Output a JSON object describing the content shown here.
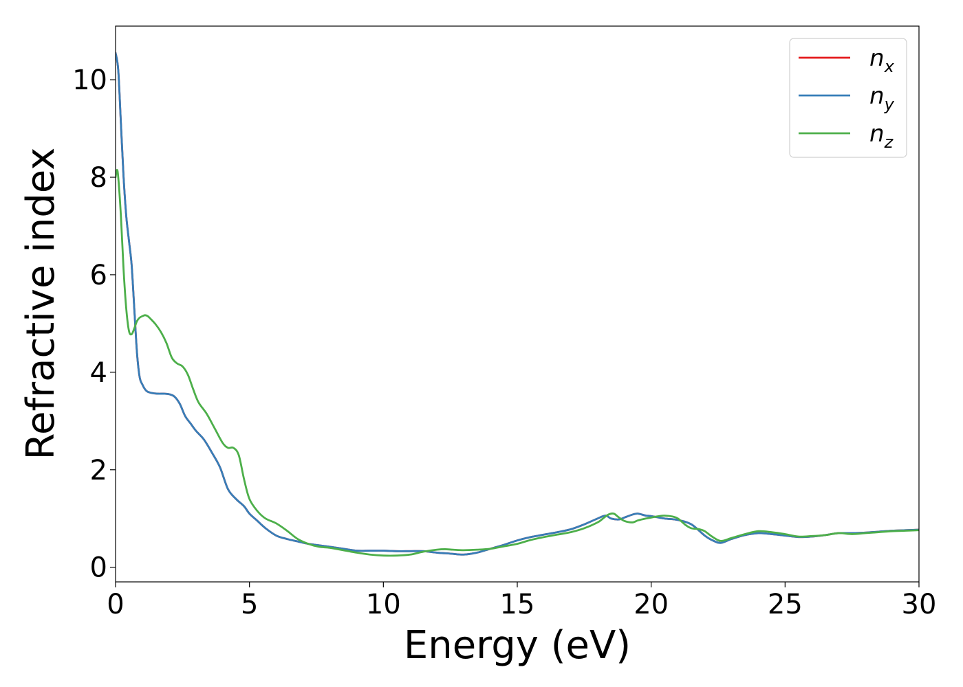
{
  "chart_data": {
    "type": "line",
    "title": "",
    "xlabel": "Energy (eV)",
    "ylabel": "Refractive index",
    "xlim": [
      0,
      30
    ],
    "ylim": [
      -0.3,
      11.1
    ],
    "xticks": [
      0,
      5,
      10,
      15,
      20,
      25,
      30
    ],
    "yticks": [
      0,
      2,
      4,
      6,
      8,
      10
    ],
    "grid": false,
    "legend_position": "top-right",
    "series": [
      {
        "name": "n",
        "subscript": "x",
        "color": "#e41a1c",
        "x": [
          0,
          0.1,
          0.2,
          0.3,
          0.4,
          0.5,
          0.6,
          0.7,
          0.8,
          0.9,
          1.0,
          1.1,
          1.2,
          1.4,
          1.6,
          1.8,
          2.0,
          2.2,
          2.4,
          2.6,
          2.8,
          3.0,
          3.3,
          3.6,
          3.9,
          4.2,
          4.5,
          4.8,
          5.0,
          5.3,
          5.6,
          6.0,
          6.4,
          6.8,
          7.2,
          7.6,
          8.0,
          8.5,
          9.0,
          9.5,
          10.0,
          10.5,
          11.0,
          11.5,
          12.0,
          12.5,
          13.0,
          13.5,
          14.0,
          14.5,
          15.0,
          15.5,
          16.0,
          16.5,
          17.0,
          17.5,
          18.0,
          18.3,
          18.5,
          18.8,
          19.0,
          19.3,
          19.5,
          19.8,
          20.0,
          20.5,
          21.0,
          21.5,
          22.0,
          22.3,
          22.6,
          23.0,
          23.5,
          24.0,
          24.5,
          25.0,
          25.5,
          26.0,
          26.5,
          27.0,
          27.5,
          28.0,
          28.5,
          29.0,
          29.5,
          30.0
        ],
        "values": [
          10.55,
          10.2,
          9.1,
          8.0,
          7.2,
          6.7,
          6.2,
          5.3,
          4.4,
          3.9,
          3.75,
          3.65,
          3.6,
          3.57,
          3.56,
          3.56,
          3.55,
          3.5,
          3.35,
          3.1,
          2.95,
          2.8,
          2.62,
          2.35,
          2.05,
          1.6,
          1.4,
          1.25,
          1.1,
          0.95,
          0.8,
          0.65,
          0.58,
          0.53,
          0.48,
          0.45,
          0.42,
          0.38,
          0.34,
          0.34,
          0.34,
          0.33,
          0.33,
          0.33,
          0.3,
          0.28,
          0.26,
          0.3,
          0.38,
          0.46,
          0.55,
          0.62,
          0.67,
          0.72,
          0.78,
          0.88,
          1.0,
          1.06,
          1.0,
          0.98,
          1.02,
          1.08,
          1.1,
          1.06,
          1.05,
          1.0,
          0.97,
          0.88,
          0.65,
          0.55,
          0.5,
          0.58,
          0.66,
          0.7,
          0.68,
          0.65,
          0.62,
          0.63,
          0.66,
          0.7,
          0.7,
          0.71,
          0.73,
          0.75,
          0.76,
          0.77
        ]
      },
      {
        "name": "n",
        "subscript": "y",
        "color": "#377eb8",
        "x": [
          0,
          0.1,
          0.2,
          0.3,
          0.4,
          0.5,
          0.6,
          0.7,
          0.8,
          0.9,
          1.0,
          1.1,
          1.2,
          1.4,
          1.6,
          1.8,
          2.0,
          2.2,
          2.4,
          2.6,
          2.8,
          3.0,
          3.3,
          3.6,
          3.9,
          4.2,
          4.5,
          4.8,
          5.0,
          5.3,
          5.6,
          6.0,
          6.4,
          6.8,
          7.2,
          7.6,
          8.0,
          8.5,
          9.0,
          9.5,
          10.0,
          10.5,
          11.0,
          11.5,
          12.0,
          12.5,
          13.0,
          13.5,
          14.0,
          14.5,
          15.0,
          15.5,
          16.0,
          16.5,
          17.0,
          17.5,
          18.0,
          18.3,
          18.5,
          18.8,
          19.0,
          19.3,
          19.5,
          19.8,
          20.0,
          20.5,
          21.0,
          21.5,
          22.0,
          22.3,
          22.6,
          23.0,
          23.5,
          24.0,
          24.5,
          25.0,
          25.5,
          26.0,
          26.5,
          27.0,
          27.5,
          28.0,
          28.5,
          29.0,
          29.5,
          30.0
        ],
        "values": [
          10.55,
          10.2,
          9.1,
          8.0,
          7.2,
          6.7,
          6.2,
          5.3,
          4.4,
          3.9,
          3.75,
          3.65,
          3.6,
          3.57,
          3.56,
          3.56,
          3.55,
          3.5,
          3.35,
          3.1,
          2.95,
          2.8,
          2.62,
          2.35,
          2.05,
          1.6,
          1.4,
          1.25,
          1.1,
          0.95,
          0.8,
          0.65,
          0.58,
          0.53,
          0.48,
          0.45,
          0.42,
          0.38,
          0.34,
          0.34,
          0.34,
          0.33,
          0.33,
          0.33,
          0.3,
          0.28,
          0.26,
          0.3,
          0.38,
          0.46,
          0.55,
          0.62,
          0.67,
          0.72,
          0.78,
          0.88,
          1.0,
          1.06,
          1.0,
          0.98,
          1.02,
          1.08,
          1.1,
          1.06,
          1.05,
          1.0,
          0.97,
          0.88,
          0.65,
          0.55,
          0.5,
          0.58,
          0.66,
          0.7,
          0.68,
          0.65,
          0.62,
          0.63,
          0.66,
          0.7,
          0.7,
          0.71,
          0.73,
          0.75,
          0.76,
          0.77
        ]
      },
      {
        "name": "n",
        "subscript": "z",
        "color": "#4daf4a",
        "x": [
          0,
          0.05,
          0.1,
          0.2,
          0.3,
          0.4,
          0.5,
          0.6,
          0.7,
          0.8,
          0.9,
          1.0,
          1.1,
          1.2,
          1.3,
          1.5,
          1.7,
          1.9,
          2.1,
          2.3,
          2.5,
          2.7,
          2.9,
          3.1,
          3.4,
          3.7,
          4.0,
          4.2,
          4.4,
          4.6,
          4.8,
          5.0,
          5.3,
          5.6,
          6.0,
          6.4,
          6.8,
          7.2,
          7.6,
          8.0,
          8.5,
          9.0,
          9.5,
          10.0,
          10.5,
          11.0,
          11.5,
          12.0,
          12.3,
          12.6,
          13.0,
          13.5,
          14.0,
          14.5,
          15.0,
          15.5,
          16.0,
          16.5,
          17.0,
          17.5,
          18.0,
          18.2,
          18.4,
          18.6,
          18.8,
          19.0,
          19.3,
          19.5,
          19.8,
          20.0,
          20.3,
          20.5,
          20.8,
          21.0,
          21.3,
          21.5,
          21.8,
          22.0,
          22.3,
          22.6,
          23.0,
          23.5,
          24.0,
          24.5,
          25.0,
          25.5,
          26.0,
          26.5,
          27.0,
          27.5,
          28.0,
          28.5,
          29.0,
          29.5,
          30.0
        ],
        "values": [
          8.0,
          8.15,
          8.0,
          7.2,
          6.1,
          5.3,
          4.85,
          4.78,
          4.9,
          5.05,
          5.12,
          5.15,
          5.17,
          5.15,
          5.1,
          4.98,
          4.82,
          4.6,
          4.3,
          4.18,
          4.12,
          3.95,
          3.65,
          3.38,
          3.15,
          2.85,
          2.55,
          2.45,
          2.45,
          2.3,
          1.8,
          1.4,
          1.15,
          1.0,
          0.9,
          0.75,
          0.58,
          0.48,
          0.42,
          0.4,
          0.35,
          0.3,
          0.26,
          0.24,
          0.24,
          0.26,
          0.32,
          0.36,
          0.37,
          0.36,
          0.35,
          0.36,
          0.38,
          0.43,
          0.48,
          0.56,
          0.62,
          0.67,
          0.72,
          0.8,
          0.92,
          1.0,
          1.08,
          1.1,
          1.02,
          0.95,
          0.92,
          0.96,
          1.0,
          1.02,
          1.05,
          1.06,
          1.04,
          1.0,
          0.86,
          0.8,
          0.78,
          0.74,
          0.62,
          0.54,
          0.6,
          0.68,
          0.74,
          0.72,
          0.68,
          0.63,
          0.64,
          0.66,
          0.7,
          0.68,
          0.7,
          0.72,
          0.74,
          0.75,
          0.76
        ]
      }
    ]
  }
}
